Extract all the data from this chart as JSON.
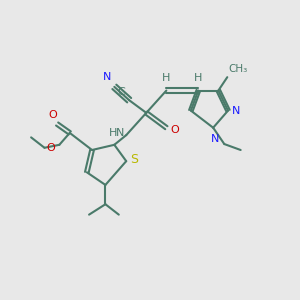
{
  "bg_color": "#e8e8e8",
  "bond_color": "#4a7a6a",
  "bond_color_dark": "#3a6a5a",
  "bond_width": 1.5,
  "fig_size": [
    3.0,
    3.0
  ],
  "dpi": 100,
  "xlim": [
    0.5,
    4.5
  ],
  "ylim": [
    0.5,
    4.0
  ],
  "blue": "#1a1aff",
  "red": "#cc0000",
  "yellow": "#b8b800"
}
